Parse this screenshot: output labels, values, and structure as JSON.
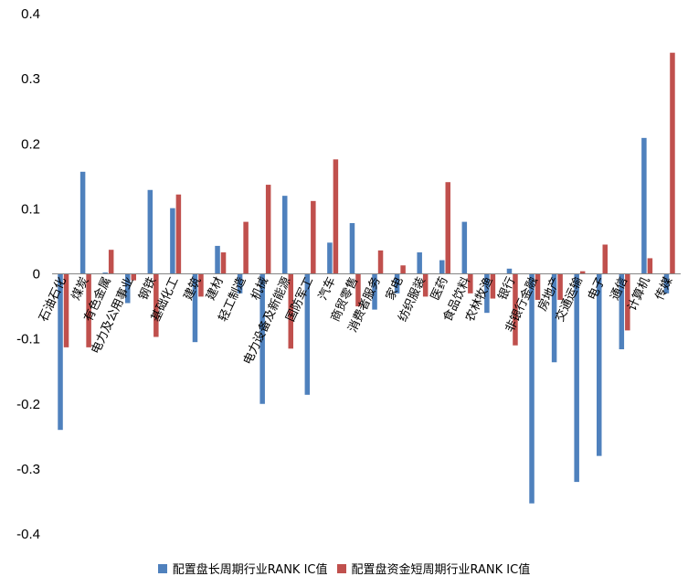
{
  "chart_data": {
    "type": "bar",
    "title": "",
    "xlabel": "",
    "ylabel": "",
    "ylim": [
      -0.4,
      0.4
    ],
    "yticks": [
      "0.4",
      "0.3",
      "0.2",
      "0.1",
      "0",
      "-0.1",
      "-0.2",
      "-0.3",
      "-0.4"
    ],
    "grid": false,
    "legend_position": "bottom",
    "categories": [
      "石油石化",
      "煤炭",
      "有色金属",
      "电力及公用事业",
      "钢铁",
      "基础化工",
      "建筑",
      "建材",
      "轻工制造",
      "机械",
      "电力设备及新能源",
      "国防军工",
      "汽车",
      "商贸零售",
      "消费者服务",
      "家电",
      "纺织服装",
      "医药",
      "食品饮料",
      "农林牧渔",
      "银行",
      "非银行金融",
      "房地产",
      "交通运输",
      "电子",
      "通信",
      "计算机",
      "传媒"
    ],
    "series": [
      {
        "name": "配置盘长周期行业RANK IC值",
        "color": "#4f81bd",
        "values": [
          -0.24,
          0.157,
          0.002,
          -0.045,
          0.129,
          0.101,
          -0.105,
          0.043,
          -0.03,
          -0.2,
          0.12,
          -0.186,
          0.048,
          0.078,
          -0.055,
          -0.03,
          0.033,
          0.021,
          0.08,
          -0.06,
          0.008,
          -0.353,
          -0.136,
          -0.32,
          -0.28,
          -0.116,
          0.209,
          -0.03
        ]
      },
      {
        "name": "配置盘资金短周期行业RANK IC值",
        "color": "#c0504d",
        "values": [
          -0.113,
          -0.113,
          0.037,
          -0.01,
          -0.097,
          0.122,
          -0.035,
          0.033,
          0.08,
          0.137,
          -0.115,
          0.112,
          0.176,
          -0.05,
          0.036,
          0.013,
          -0.035,
          0.141,
          -0.03,
          -0.038,
          -0.11,
          -0.04,
          -0.04,
          0.004,
          0.045,
          -0.087,
          0.024,
          0.34
        ]
      }
    ]
  }
}
